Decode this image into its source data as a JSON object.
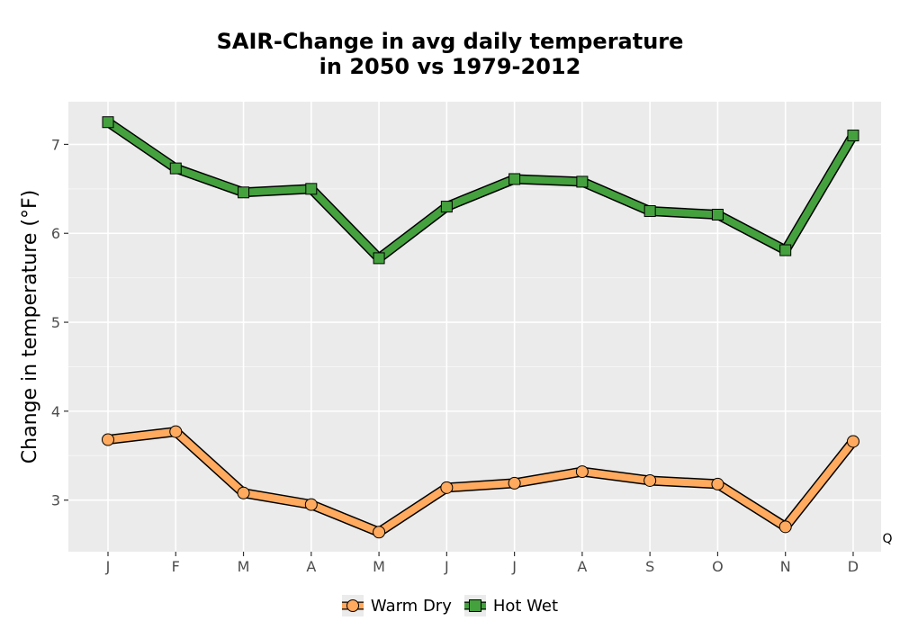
{
  "chart_data": {
    "type": "line",
    "title_lines": [
      "SAIR-Change in avg daily temperature",
      "in 2050 vs 1979-2012"
    ],
    "xlabel": "",
    "ylabel": "Change in temperature (°F)",
    "categories": [
      "J",
      "F",
      "M",
      "A",
      "M",
      "J",
      "J",
      "A",
      "S",
      "O",
      "N",
      "D"
    ],
    "yticks": [
      3,
      4,
      5,
      6,
      7
    ],
    "ylim": [
      2.42,
      7.48
    ],
    "grid": true,
    "legend_position": "bottom",
    "corner_label": "Q",
    "series": [
      {
        "name": "Warm Dry",
        "marker": "circle",
        "color": "#ffaa5e",
        "values": [
          3.68,
          3.77,
          3.08,
          2.95,
          2.64,
          3.14,
          3.19,
          3.32,
          3.22,
          3.18,
          2.7,
          3.66
        ]
      },
      {
        "name": "Hot Wet",
        "marker": "square",
        "color": "#44a13e",
        "values": [
          7.25,
          6.73,
          6.46,
          6.5,
          5.72,
          6.3,
          6.61,
          6.58,
          6.25,
          6.21,
          5.81,
          7.1
        ]
      }
    ]
  }
}
